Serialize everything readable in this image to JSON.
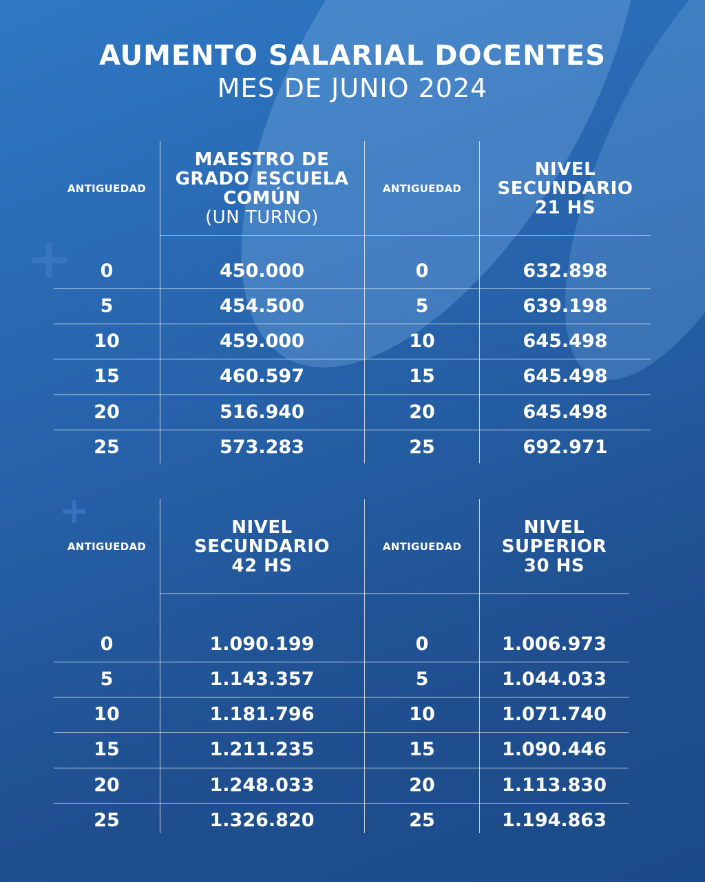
{
  "title": "AUMENTO SALARIAL DOCENTES",
  "subtitle": "MES DE JUNIO 2024",
  "tables": [
    {
      "left": {
        "antiguedad_header": "ANTIGUEDAD",
        "header_lines": [
          "MAESTRO DE",
          "GRADO ESCUELA",
          "COMÚN"
        ],
        "header_sub": "(UN TURNO)",
        "rows": [
          [
            "0",
            "450.000"
          ],
          [
            "5",
            "454.500"
          ],
          [
            "10",
            "459.000"
          ],
          [
            "15",
            "460.597"
          ],
          [
            "20",
            "516.940"
          ],
          [
            "25",
            "573.283"
          ]
        ]
      },
      "right": {
        "antiguedad_header": "ANTIGUEDAD",
        "header_lines": [
          "NIVEL",
          "SECUNDARIO",
          "21 HS"
        ],
        "header_sub": "",
        "rows": [
          [
            "0",
            "632.898"
          ],
          [
            "5",
            "639.198"
          ],
          [
            "10",
            "645.498"
          ],
          [
            "15",
            "645.498"
          ],
          [
            "20",
            "645.498"
          ],
          [
            "25",
            "692.971"
          ]
        ]
      }
    },
    {
      "left": {
        "antiguedad_header": "ANTIGUEDAD",
        "header_lines": [
          "NIVEL",
          "SECUNDARIO",
          "42 HS"
        ],
        "header_sub": "",
        "rows": [
          [
            "0",
            "1.090.199"
          ],
          [
            "5",
            "1.143.357"
          ],
          [
            "10",
            "1.181.796"
          ],
          [
            "15",
            "1.211.235"
          ],
          [
            "20",
            "1.248.033"
          ],
          [
            "25",
            "1.326.820"
          ]
        ]
      },
      "right": {
        "antiguedad_header": "ANTIGUEDAD",
        "header_lines": [
          "NIVEL",
          "SUPERIOR",
          "30 HS"
        ],
        "header_sub": "",
        "rows": [
          [
            "0",
            "1.006.973"
          ],
          [
            "5",
            "1.044.033"
          ],
          [
            "10",
            "1.071.740"
          ],
          [
            "15",
            "1.090.446"
          ],
          [
            "20",
            "1.113.830"
          ],
          [
            "25",
            "1.194.863"
          ]
        ]
      }
    }
  ]
}
